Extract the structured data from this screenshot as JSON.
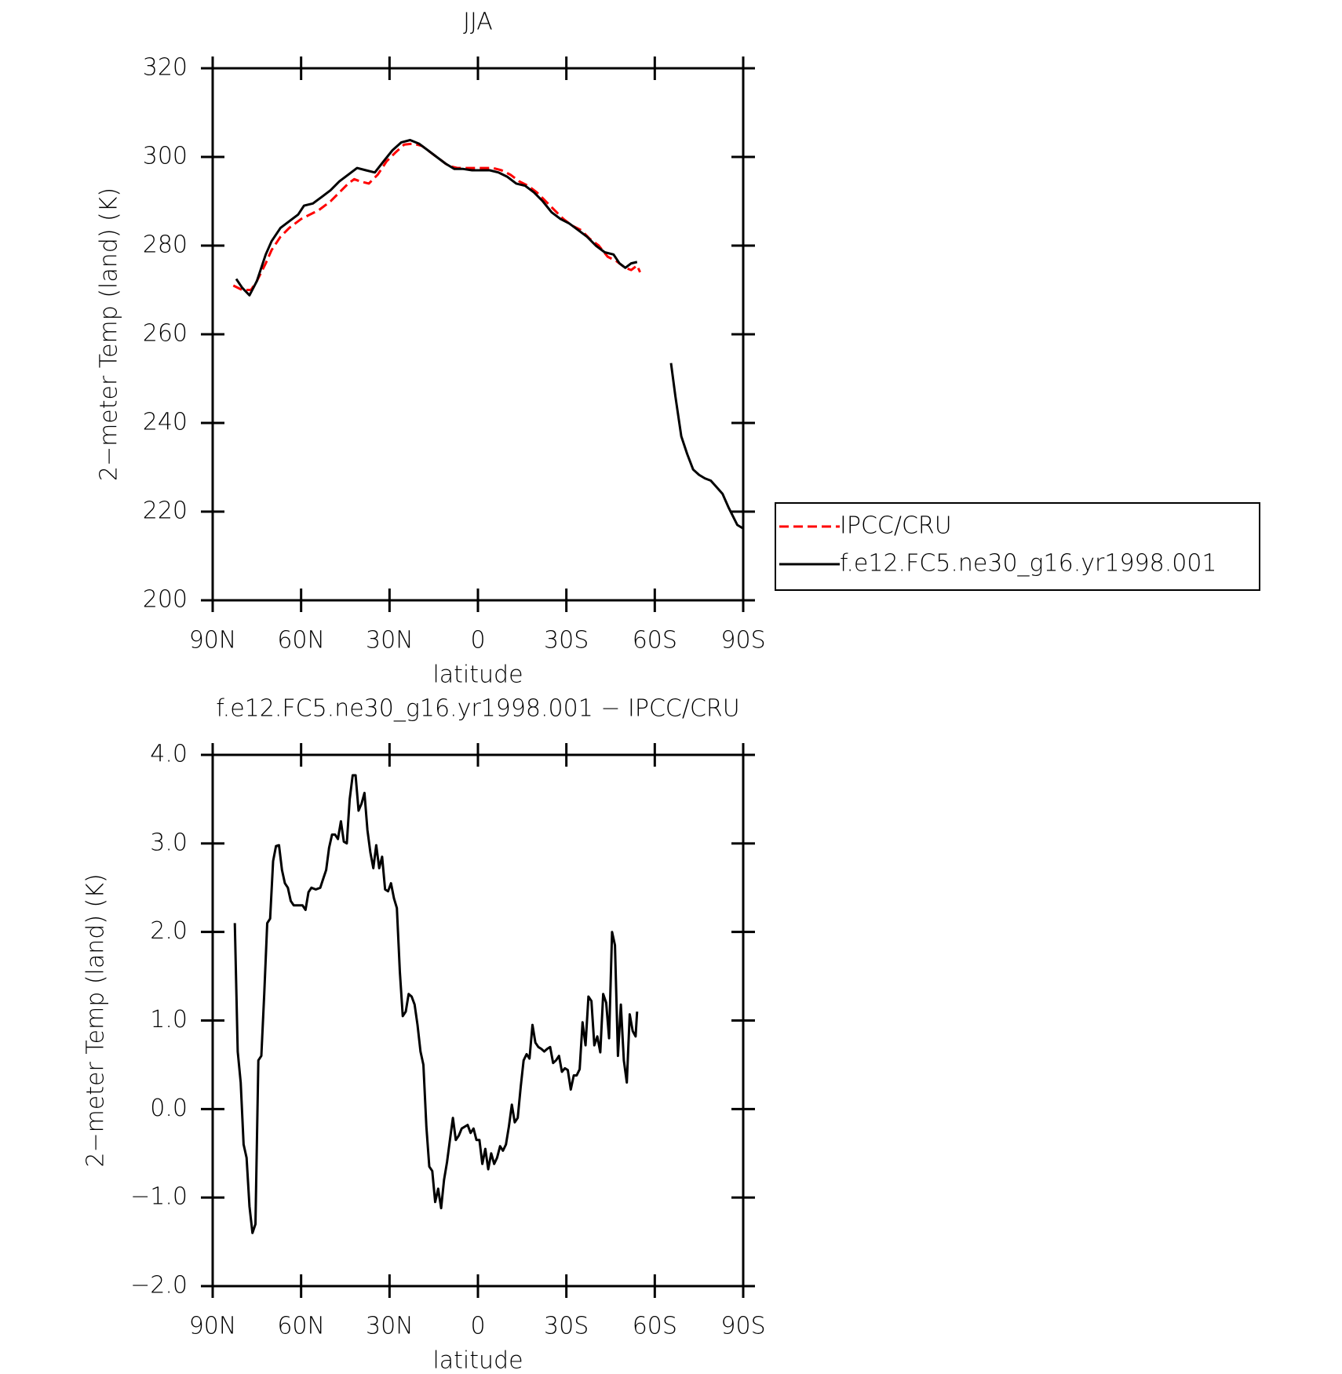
{
  "chart_data": [
    {
      "type": "line",
      "title": "JJA",
      "xlabel": "latitude",
      "ylabel": "2−meter Temp (land) (K)",
      "xlim": [
        90,
        -90
      ],
      "ylim": [
        200,
        320
      ],
      "xticks": [
        {
          "value": 90,
          "label": "90N"
        },
        {
          "value": 60,
          "label": "60N"
        },
        {
          "value": 30,
          "label": "30N"
        },
        0,
        {
          "value": -30,
          "label": "30S"
        },
        {
          "value": -60,
          "label": "60S"
        },
        {
          "value": -90,
          "label": "90S"
        }
      ],
      "yticks": [
        200,
        220,
        240,
        260,
        280,
        300,
        320
      ],
      "legend": "right",
      "series": [
        {
          "name": "IPCC/CRU",
          "color": "#ff0000",
          "style": "dashed",
          "x": [
            83,
            80,
            77,
            75,
            72,
            70,
            67,
            64,
            60,
            57,
            54,
            50,
            47,
            44,
            42,
            40,
            37,
            34,
            31,
            28,
            25,
            22,
            19,
            16,
            13,
            10,
            7,
            4,
            1,
            -2,
            -5,
            -8,
            -11,
            -14,
            -17,
            -20,
            -23,
            -26,
            -29,
            -32,
            -35,
            -38,
            -41,
            -44,
            -47,
            -50,
            -52,
            -54,
            -55
          ],
          "values": [
            271,
            270,
            270,
            272,
            276,
            279,
            282,
            284,
            286,
            287,
            288,
            290,
            292,
            294,
            295,
            294.5,
            294,
            296,
            299,
            301,
            302.8,
            303,
            302.5,
            301,
            299.5,
            298,
            297.5,
            297.5,
            297.5,
            297.5,
            297.5,
            297,
            296,
            294.5,
            293.5,
            292,
            290,
            288,
            286,
            284.5,
            283.5,
            281.5,
            280,
            277.5,
            276.5,
            275,
            274.5,
            275.5,
            274
          ]
        },
        {
          "name": "f.e12.FC5.ne30_g16.yr1998.001",
          "color": "#000000",
          "style": "solid",
          "x": [
            82,
            80,
            77.5,
            75,
            72,
            70,
            67,
            64,
            61,
            59,
            56,
            53,
            50,
            47,
            44,
            41,
            38,
            35,
            32,
            29,
            26,
            23,
            20,
            17,
            14,
            11,
            8,
            5,
            2,
            -1,
            -4,
            -7,
            -10,
            -13,
            -16,
            -19,
            -22,
            -25,
            -28,
            -31,
            -34,
            -37,
            -40,
            -43,
            -46,
            -48,
            -50,
            -52,
            -54,
            -60,
            -65.5,
            -67,
            -69,
            -71,
            -73,
            -75,
            -77,
            -79,
            -81,
            -83,
            -85,
            -88,
            -90
          ],
          "values": [
            272.5,
            270.5,
            268.8,
            272,
            278,
            281,
            284,
            285.5,
            287,
            289,
            289.5,
            291,
            292.5,
            294.5,
            296,
            297.5,
            297,
            296.5,
            299,
            301.5,
            303.3,
            303.8,
            303,
            301.5,
            300,
            298.5,
            297.3,
            297.3,
            297,
            297,
            297,
            296.5,
            295.5,
            294,
            293.5,
            292,
            290,
            287.5,
            286,
            285,
            283.5,
            282,
            280,
            278.5,
            278,
            276,
            275,
            276,
            276.3,
            null,
            253.5,
            246,
            237,
            233,
            229.5,
            228.3,
            227.5,
            227,
            225.5,
            224,
            221,
            217,
            216.2
          ]
        }
      ]
    },
    {
      "type": "line",
      "title": "f.e12.FC5.ne30_g16.yr1998.001 − IPCC/CRU",
      "xlabel": "latitude",
      "ylabel": "2−meter Temp (land) (K)",
      "xlim": [
        90,
        -90
      ],
      "ylim": [
        -2,
        4
      ],
      "xticks": [
        {
          "value": 90,
          "label": "90N"
        },
        {
          "value": 60,
          "label": "60N"
        },
        {
          "value": 30,
          "label": "30N"
        },
        0,
        {
          "value": -30,
          "label": "30S"
        },
        {
          "value": -60,
          "label": "60S"
        },
        {
          "value": -90,
          "label": "90S"
        }
      ],
      "yticks": [
        {
          "value": -2,
          "label": "−2.0"
        },
        {
          "value": -1,
          "label": "−1.0"
        },
        {
          "value": 0,
          "label": "0.0"
        },
        {
          "value": 1,
          "label": "1.0"
        },
        {
          "value": 2,
          "label": "2.0"
        },
        {
          "value": 3,
          "label": "3.0"
        },
        {
          "value": 4,
          "label": "4.0"
        }
      ],
      "series": [
        {
          "color": "#000000",
          "style": "solid",
          "x": [
            82.5,
            81.5,
            80.5,
            79.5,
            78.5,
            77.5,
            76.5,
            75.5,
            74.5,
            73.5,
            72.5,
            71.5,
            70.5,
            69.5,
            68.5,
            67.5,
            66.5,
            65.5,
            64.5,
            63.5,
            62.5,
            61,
            59.5,
            58.5,
            57.5,
            56.5,
            55,
            53.5,
            52.5,
            51.5,
            50.5,
            49.5,
            48.5,
            47.5,
            46.5,
            45.5,
            44.5,
            43.5,
            42.5,
            41.5,
            40.5,
            39.5,
            38.5,
            37.5,
            36.5,
            35.5,
            34.5,
            33.5,
            32.5,
            31.5,
            30.5,
            29.5,
            28.5,
            27.5,
            26.5,
            25.5,
            24.5,
            23.5,
            22.5,
            21.5,
            20.5,
            19.5,
            18.5,
            17.5,
            16.5,
            15.5,
            14.5,
            13.5,
            12.5,
            11.5,
            10.5,
            9.5,
            8.5,
            7.5,
            6.5,
            5.5,
            4.5,
            3.5,
            2.5,
            1.5,
            0.5,
            -0.5,
            -1.5,
            -2.5,
            -3.5,
            -4.5,
            -5.5,
            -6.5,
            -7.5,
            -8.5,
            -9.5,
            -10.5,
            -11.5,
            -12.5,
            -13.5,
            -14.5,
            -15.5,
            -16.5,
            -17.5,
            -18.5,
            -19.5,
            -20.5,
            -21.5,
            -22.5,
            -23.5,
            -24.5,
            -25.5,
            -26.5,
            -27.5,
            -28.5,
            -29.5,
            -30.5,
            -31.5,
            -32.5,
            -33.5,
            -34.5,
            -35.5,
            -36.5,
            -37.5,
            -38.5,
            -39.5,
            -40.5,
            -41.5,
            -42.5,
            -43.5,
            -44.5,
            -45.5,
            -46.5,
            -47.5,
            -48.5,
            -49.5,
            -50.5,
            -51.5,
            -52.5,
            -53.5,
            -54
          ],
          "values": [
            2.1,
            0.65,
            0.3,
            -0.4,
            -0.55,
            -1.1,
            -1.4,
            -1.3,
            0.55,
            0.6,
            1.3,
            2.1,
            2.15,
            2.8,
            2.97,
            2.98,
            2.7,
            2.55,
            2.5,
            2.35,
            2.3,
            2.3,
            2.3,
            2.25,
            2.45,
            2.5,
            2.48,
            2.5,
            2.6,
            2.7,
            2.95,
            3.1,
            3.1,
            3.05,
            3.25,
            3.02,
            3.0,
            3.5,
            3.77,
            3.77,
            3.37,
            3.45,
            3.57,
            3.15,
            2.9,
            2.72,
            2.98,
            2.72,
            2.85,
            2.48,
            2.46,
            2.55,
            2.38,
            2.27,
            1.55,
            1.05,
            1.1,
            1.3,
            1.27,
            1.18,
            0.95,
            0.65,
            0.5,
            -0.2,
            -0.65,
            -0.7,
            -1.05,
            -0.9,
            -1.12,
            -0.8,
            -0.6,
            -0.35,
            -0.1,
            -0.35,
            -0.3,
            -0.22,
            -0.2,
            -0.18,
            -0.27,
            -0.22,
            -0.35,
            -0.35,
            -0.62,
            -0.45,
            -0.68,
            -0.5,
            -0.62,
            -0.55,
            -0.42,
            -0.47,
            -0.4,
            -0.2,
            0.05,
            -0.15,
            -0.1,
            0.25,
            0.55,
            0.62,
            0.57,
            0.95,
            0.75,
            0.7,
            0.68,
            0.65,
            0.68,
            0.7,
            0.52,
            0.55,
            0.6,
            0.42,
            0.46,
            0.44,
            0.22,
            0.38,
            0.38,
            0.45,
            0.98,
            0.72,
            1.27,
            1.22,
            0.72,
            0.82,
            0.64,
            1.3,
            1.2,
            0.8,
            2.0,
            1.85,
            0.6,
            1.18,
            0.55,
            0.3,
            1.07,
            0.88,
            0.82,
            1.1
          ]
        }
      ]
    }
  ]
}
